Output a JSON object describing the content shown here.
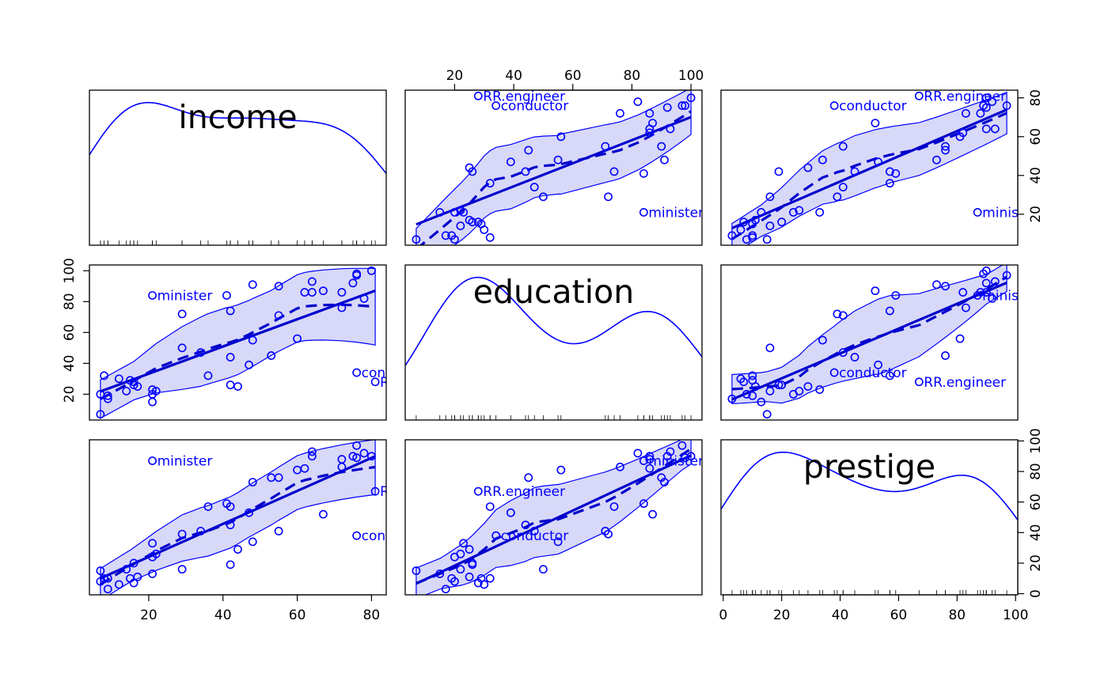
{
  "chart_data": {
    "type": "scatter",
    "variables": [
      {
        "name": "income",
        "range": [
          7,
          81
        ],
        "axis_ticks": [
          20,
          40,
          60,
          80
        ]
      },
      {
        "name": "education",
        "range": [
          7,
          100
        ],
        "axis_ticks": [
          20,
          40,
          60,
          80,
          100
        ]
      },
      {
        "name": "prestige",
        "range": [
          3,
          97
        ],
        "axis_ticks": [
          0,
          20,
          40,
          60,
          80,
          100
        ]
      }
    ],
    "grid": false,
    "colors": {
      "points": "#0000ff",
      "fit": "#0000cc",
      "band_fill": "#d8d8f8",
      "band_edge": "#0000ff",
      "frame": "#000000"
    },
    "observations": [
      {
        "income": 62,
        "education": 86,
        "prestige": 82
      },
      {
        "income": 72,
        "education": 76,
        "prestige": 83
      },
      {
        "income": 75,
        "education": 92,
        "prestige": 90
      },
      {
        "income": 55,
        "education": 90,
        "prestige": 76
      },
      {
        "income": 64,
        "education": 86,
        "prestige": 90
      },
      {
        "income": 21,
        "education": 84,
        "prestige": 87,
        "label": "minister"
      },
      {
        "income": 64,
        "education": 93,
        "prestige": 93
      },
      {
        "income": 80,
        "education": 100,
        "prestige": 90
      },
      {
        "income": 67,
        "education": 87,
        "prestige": 52
      },
      {
        "income": 72,
        "education": 86,
        "prestige": 88
      },
      {
        "income": 42,
        "education": 74,
        "prestige": 57
      },
      {
        "income": 76,
        "education": 98,
        "prestige": 89
      },
      {
        "income": 76,
        "education": 97,
        "prestige": 97
      },
      {
        "income": 41,
        "education": 84,
        "prestige": 59
      },
      {
        "income": 48,
        "education": 91,
        "prestige": 73
      },
      {
        "income": 76,
        "education": 34,
        "prestige": 38,
        "label": "conductor"
      },
      {
        "income": 53,
        "education": 45,
        "prestige": 76
      },
      {
        "income": 60,
        "education": 56,
        "prestige": 81
      },
      {
        "income": 42,
        "education": 44,
        "prestige": 45
      },
      {
        "income": 78,
        "education": 82,
        "prestige": 92
      },
      {
        "income": 29,
        "education": 72,
        "prestige": 39
      },
      {
        "income": 48,
        "education": 55,
        "prestige": 34
      },
      {
        "income": 55,
        "education": 71,
        "prestige": 41
      },
      {
        "income": 29,
        "education": 50,
        "prestige": 16
      },
      {
        "income": 21,
        "education": 23,
        "prestige": 33
      },
      {
        "income": 47,
        "education": 39,
        "prestige": 53
      },
      {
        "income": 81,
        "education": 28,
        "prestige": 67,
        "label": "RR.engineer"
      },
      {
        "income": 36,
        "education": 32,
        "prestige": 57
      },
      {
        "income": 22,
        "education": 22,
        "prestige": 26
      },
      {
        "income": 44,
        "education": 25,
        "prestige": 29
      },
      {
        "income": 15,
        "education": 29,
        "prestige": 10
      },
      {
        "income": 7,
        "education": 7,
        "prestige": 15
      },
      {
        "income": 42,
        "education": 26,
        "prestige": 19
      },
      {
        "income": 9,
        "education": 19,
        "prestige": 10
      },
      {
        "income": 21,
        "education": 15,
        "prestige": 13
      },
      {
        "income": 21,
        "education": 20,
        "prestige": 24
      },
      {
        "income": 16,
        "education": 26,
        "prestige": 20
      },
      {
        "income": 16,
        "education": 28,
        "prestige": 7
      },
      {
        "income": 9,
        "education": 17,
        "prestige": 3
      },
      {
        "income": 14,
        "education": 22,
        "prestige": 16
      },
      {
        "income": 12,
        "education": 30,
        "prestige": 6
      },
      {
        "income": 17,
        "education": 25,
        "prestige": 11
      },
      {
        "income": 7,
        "education": 20,
        "prestige": 8
      },
      {
        "income": 34,
        "education": 47,
        "prestige": 41
      },
      {
        "income": 8,
        "education": 32,
        "prestige": 10
      }
    ]
  }
}
